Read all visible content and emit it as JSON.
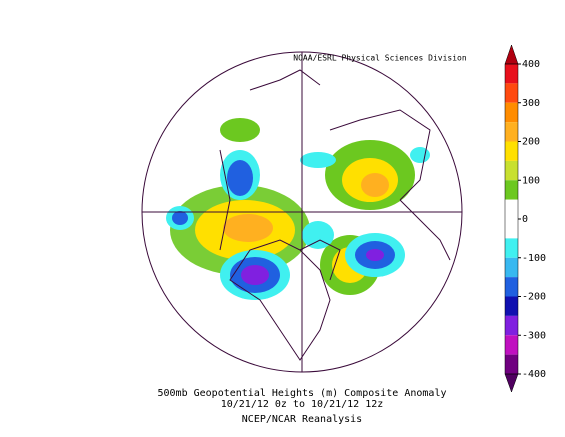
{
  "header": {
    "credit": "NOAA/ESRL Physical Sciences Division"
  },
  "colorbar": {
    "lim": [
      -400,
      400
    ],
    "ticks": [
      400,
      300,
      200,
      100,
      0,
      -100,
      -200,
      -300,
      -400
    ],
    "colors": [
      "#e8101c",
      "#ff4a10",
      "#ff8c00",
      "#ffb020",
      "#ffe000",
      "#c8e030",
      "#6cc820",
      "#ffffff",
      "#ffffff",
      "#40f0f0",
      "#38b8f0",
      "#2060e0",
      "#1010b0",
      "#8020e0",
      "#c010c0",
      "#700080"
    ],
    "over_color": "#b00010",
    "under_color": "#500060"
  },
  "caption": {
    "line1": "500mb Geopotential Heights (m)   Composite Anomaly",
    "line2": "10/21/12 0z  to 10/21/12 12z",
    "line3": "NCEP/NCAR Reanalysis"
  }
}
